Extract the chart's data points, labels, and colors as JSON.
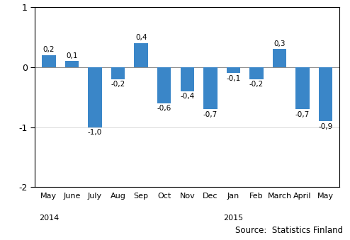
{
  "categories": [
    "May",
    "June",
    "July",
    "Aug",
    "Sep",
    "Oct",
    "Nov",
    "Dec",
    "Jan",
    "Feb",
    "March",
    "April",
    "May"
  ],
  "values": [
    0.2,
    0.1,
    -1.0,
    -0.2,
    0.4,
    -0.6,
    -0.4,
    -0.7,
    -0.1,
    -0.2,
    0.3,
    -0.7,
    -0.9
  ],
  "labels": [
    "0,2",
    "0,1",
    "-1,0",
    "-0,2",
    "0,4",
    "-0,6",
    "-0,4",
    "-0,7",
    "-0,1",
    "-0,2",
    "0,3",
    "-0,7",
    "-0,9"
  ],
  "bar_color": "#3a86c8",
  "ylim": [
    -2,
    1
  ],
  "yticks": [
    -2,
    -1,
    0,
    1
  ],
  "ytick_labels": [
    "-2",
    "-1",
    "0",
    "1"
  ],
  "source_text": "Source:  Statistics Finland",
  "year_2014_idx": 0,
  "year_2015_idx": 8,
  "background_color": "#ffffff"
}
